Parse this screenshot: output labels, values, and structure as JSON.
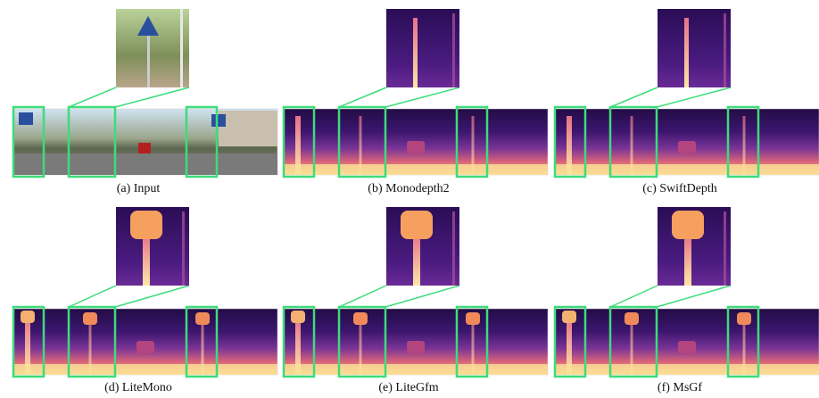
{
  "panels": [
    {
      "caption": "(a) Input"
    },
    {
      "caption": "(b) Monodepth2"
    },
    {
      "caption": "(c) SwiftDepth"
    },
    {
      "caption": "(d) LiteMono"
    },
    {
      "caption": "(e) LiteGfm"
    },
    {
      "caption": "(f) MsGf"
    }
  ]
}
